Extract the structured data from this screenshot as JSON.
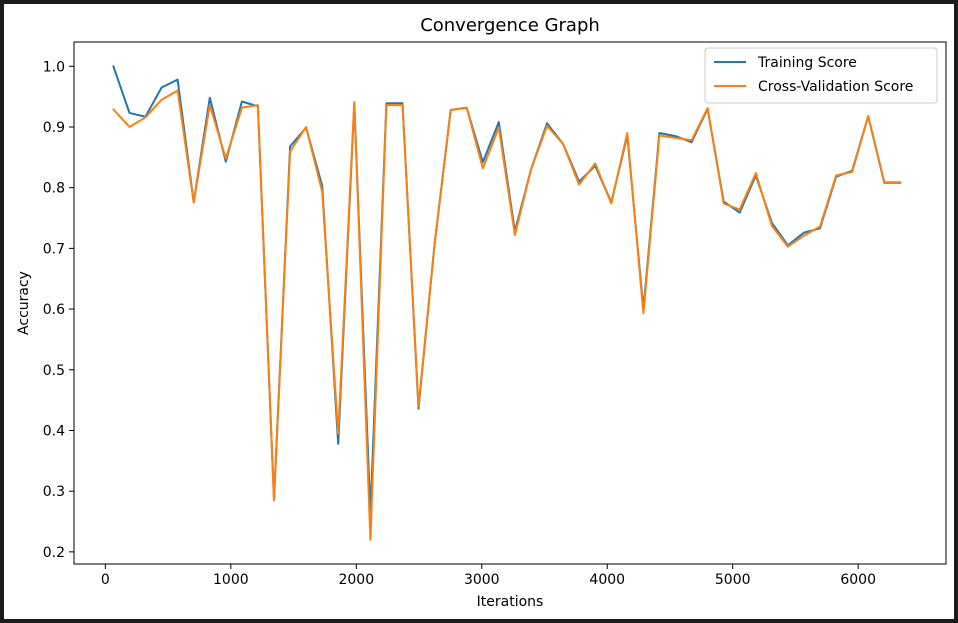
{
  "chart_data": {
    "type": "line",
    "title": "Convergence Graph",
    "xlabel": "Iterations",
    "ylabel": "Accuracy",
    "xlim": [
      -250,
      6700
    ],
    "ylim": [
      0.18,
      1.04
    ],
    "xticks": [
      0,
      1000,
      2000,
      3000,
      4000,
      5000,
      6000
    ],
    "yticks": [
      0.2,
      0.3,
      0.4,
      0.5,
      0.6,
      0.7,
      0.8,
      0.9,
      1.0
    ],
    "ytick_labels": [
      "0.2",
      "0.3",
      "0.4",
      "0.5",
      "0.6",
      "0.7",
      "0.8",
      "0.9",
      "1.0"
    ],
    "grid": false,
    "legend_position": "top-right",
    "x": [
      64,
      192,
      320,
      448,
      576,
      704,
      832,
      960,
      1088,
      1216,
      1344,
      1472,
      1600,
      1728,
      1856,
      1984,
      2112,
      2240,
      2368,
      2496,
      2624,
      2752,
      2880,
      3008,
      3136,
      3264,
      3392,
      3520,
      3648,
      3776,
      3904,
      4032,
      4160,
      4288,
      4416,
      4544,
      4672,
      4800,
      4928,
      5056,
      5184,
      5312,
      5440,
      5568,
      5696,
      5824,
      5952,
      6080,
      6208,
      6336
    ],
    "series": [
      {
        "name": "Training Score",
        "color": "#1f77b4",
        "values": [
          1.0,
          0.923,
          0.917,
          0.965,
          0.978,
          0.776,
          0.948,
          0.843,
          0.942,
          0.934,
          0.286,
          0.868,
          0.899,
          0.803,
          0.378,
          0.938,
          0.262,
          0.939,
          0.939,
          0.436,
          0.707,
          0.928,
          0.932,
          0.842,
          0.908,
          0.728,
          0.83,
          0.906,
          0.872,
          0.81,
          0.836,
          0.776,
          0.886,
          0.6,
          0.89,
          0.885,
          0.875,
          0.93,
          0.777,
          0.759,
          0.82,
          0.742,
          0.705,
          0.726,
          0.733,
          0.818,
          0.828,
          0.918,
          0.808,
          0.808
        ]
      },
      {
        "name": "Cross-Validation Score",
        "color": "#ff7f0e",
        "values": [
          0.929,
          0.9,
          0.916,
          0.945,
          0.96,
          0.776,
          0.936,
          0.848,
          0.932,
          0.936,
          0.285,
          0.86,
          0.9,
          0.793,
          0.395,
          0.941,
          0.22,
          0.936,
          0.936,
          0.44,
          0.707,
          0.928,
          0.932,
          0.832,
          0.899,
          0.722,
          0.83,
          0.902,
          0.872,
          0.805,
          0.84,
          0.774,
          0.89,
          0.593,
          0.886,
          0.882,
          0.878,
          0.931,
          0.774,
          0.764,
          0.824,
          0.737,
          0.703,
          0.721,
          0.736,
          0.82,
          0.826,
          0.918,
          0.809,
          0.809
        ]
      }
    ]
  }
}
